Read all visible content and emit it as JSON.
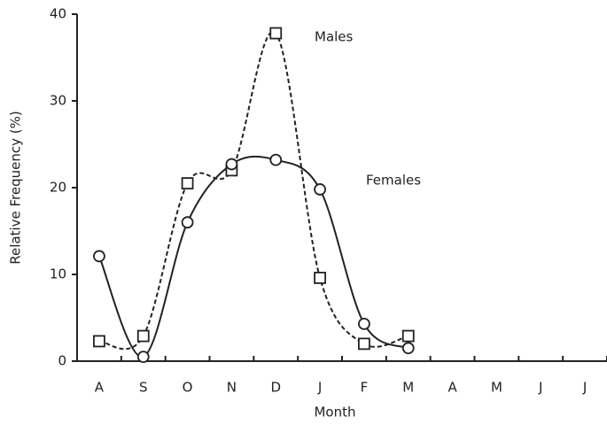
{
  "chart_data": {
    "type": "line",
    "categories": [
      "A",
      "S",
      "O",
      "N",
      "D",
      "J",
      "F",
      "M",
      "A",
      "M",
      "J",
      "J"
    ],
    "series": [
      {
        "name": "Males",
        "color": "#222222",
        "dashed": true,
        "marker": "square",
        "values": [
          2.3,
          2.9,
          20.5,
          22,
          37.8,
          9.6,
          2.0,
          2.9,
          null,
          null,
          null,
          null
        ]
      },
      {
        "name": "Females",
        "color": "#222222",
        "dashed": false,
        "marker": "circle",
        "values": [
          12.1,
          0.5,
          16,
          22.7,
          23.2,
          19.8,
          4.3,
          1.5,
          null,
          null,
          null,
          null
        ]
      }
    ],
    "x_label": "Month",
    "y_label": "Relative Frequency (%)",
    "ylim": [
      0,
      40
    ],
    "yticks": [
      0,
      10,
      20,
      30,
      40
    ]
  }
}
